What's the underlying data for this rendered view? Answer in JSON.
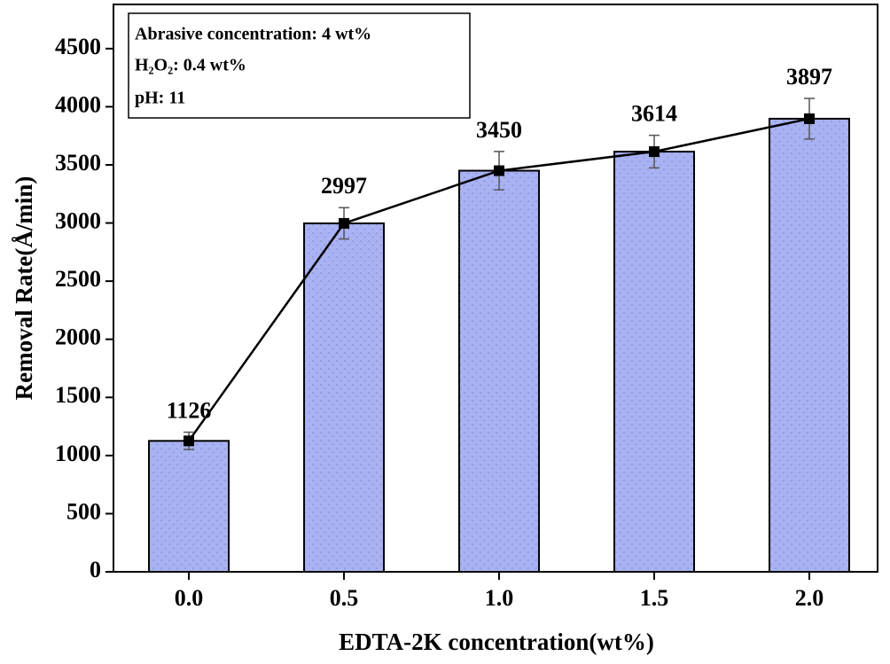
{
  "chart_data": {
    "type": "bar",
    "x_label": "EDTA-2K concentration(wt%)",
    "y_label": "Removal Rate(Å/min)",
    "annotations": [
      "Abrasive concentration: 4 wt%",
      "H₂O₂: 0.4 wt%",
      "pH: 11"
    ],
    "x": [
      0,
      0.5,
      1,
      1.5,
      2
    ],
    "values": [
      1126,
      2997,
      3450,
      3614,
      3897
    ],
    "errors": [
      75,
      135,
      165,
      140,
      175
    ],
    "color": "#a9b2f2",
    "line_color": "#000000",
    "xlim": [
      -0.243,
      2.22
    ],
    "xticks": [
      {
        "value": 0,
        "label": "0.0"
      },
      {
        "value": 0.5,
        "label": "0.5"
      },
      {
        "value": 1,
        "label": "1.0"
      },
      {
        "value": 1.5,
        "label": "1.5"
      },
      {
        "value": 2,
        "label": "2.0"
      }
    ],
    "ylim": [
      0,
      4880
    ],
    "yticks": [
      0,
      500,
      1000,
      1500,
      2000,
      2500,
      3000,
      3500,
      4000,
      4500
    ]
  }
}
